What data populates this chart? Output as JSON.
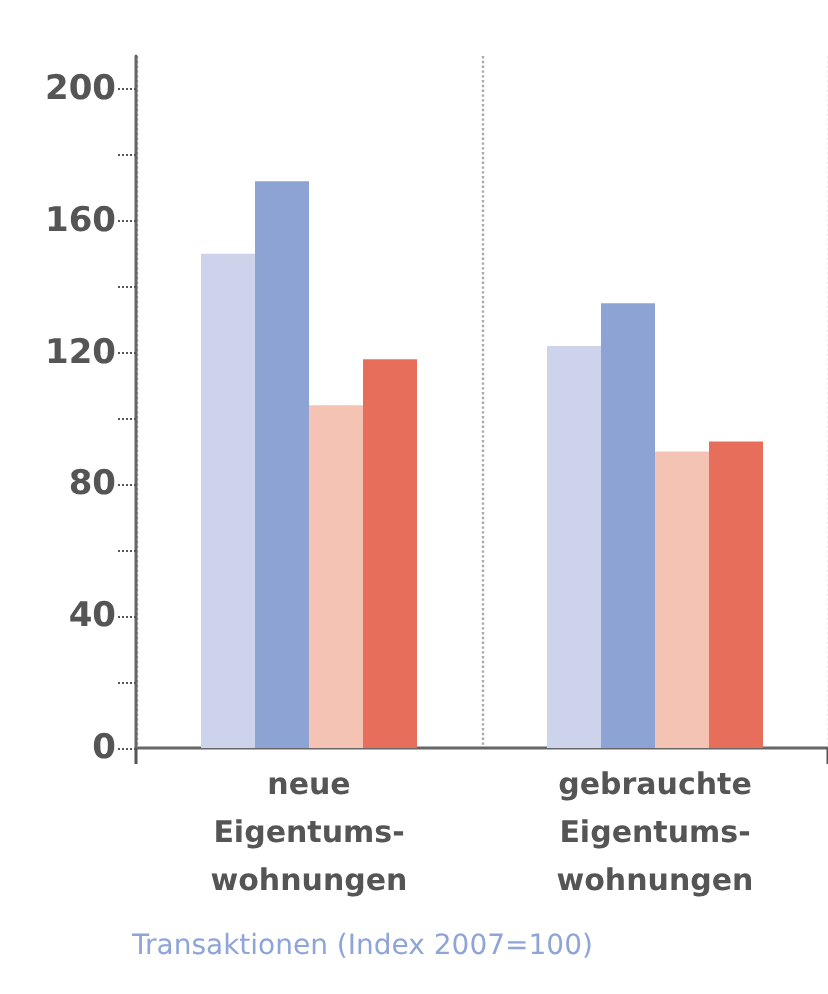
{
  "chart_data": {
    "type": "bar",
    "categories": [
      "neue\nEigentums-\nwohnungen",
      "gebrauchte\nEigentums-\nwohnungen"
    ],
    "series": [
      {
        "color": "#ccd3eb",
        "values": [
          150,
          122
        ]
      },
      {
        "color": "#8ca3d3",
        "values": [
          172,
          135
        ]
      },
      {
        "color": "#f5c3b3",
        "values": [
          104,
          90
        ]
      },
      {
        "color": "#e86e5c",
        "values": [
          118,
          93
        ]
      }
    ],
    "ylim": [
      0,
      210
    ],
    "yticks": [
      0,
      {
        "value": 20,
        "label": null
      },
      40,
      {
        "value": 60,
        "label": null
      },
      80,
      {
        "value": 100,
        "label": null
      },
      120,
      {
        "value": 140,
        "label": null
      },
      160,
      {
        "value": 180,
        "label": null
      },
      200
    ],
    "grid": "x",
    "annotations": [
      "Transaktionen (Index 2007=100)"
    ]
  }
}
